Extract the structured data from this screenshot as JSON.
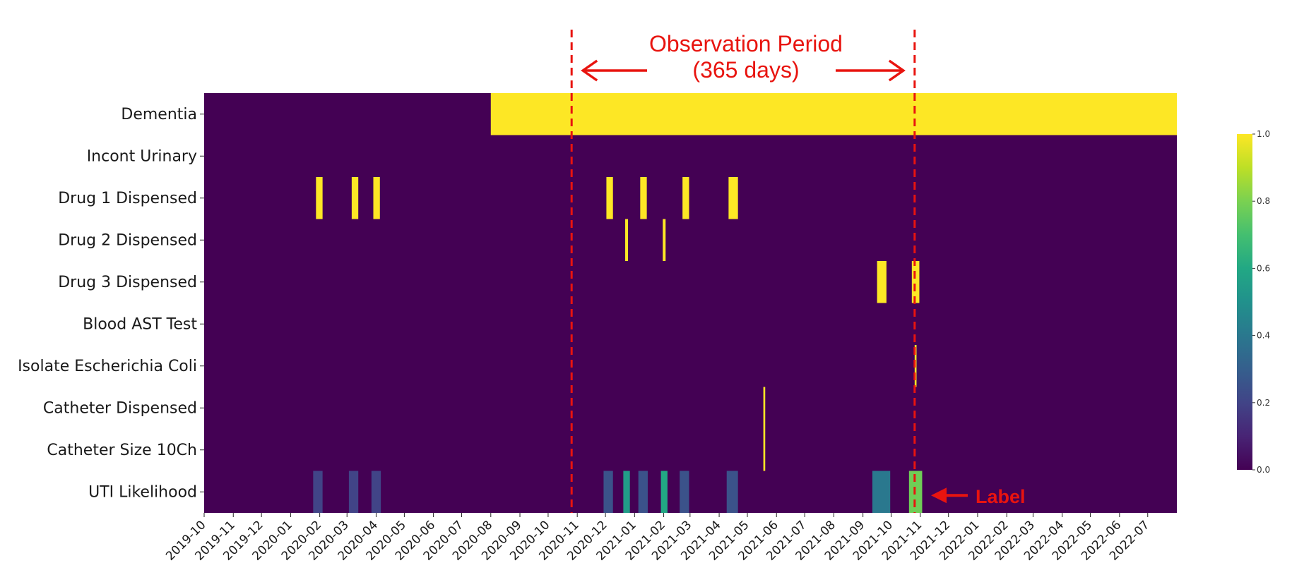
{
  "chart_data": {
    "type": "heatmap",
    "title": "",
    "xlabel": "",
    "ylabel": "",
    "x_start": "2019-10-01",
    "x_end": "2022-08-01",
    "x_tick_labels": [
      "2019-10",
      "2019-11",
      "2019-12",
      "2020-01",
      "2020-02",
      "2020-03",
      "2020-04",
      "2020-05",
      "2020-06",
      "2020-07",
      "2020-08",
      "2020-09",
      "2020-10",
      "2020-11",
      "2020-12",
      "2021-01",
      "2021-02",
      "2021-03",
      "2021-04",
      "2021-05",
      "2021-06",
      "2021-07",
      "2021-08",
      "2021-09",
      "2021-10",
      "2021-11",
      "2021-12",
      "2022-01",
      "2022-02",
      "2022-03",
      "2022-04",
      "2022-05",
      "2022-06",
      "2022-07"
    ],
    "rows": [
      "Dementia",
      "Incont Urinary",
      "Drug 1 Dispensed",
      "Drug 2 Dispensed",
      "Drug 3 Dispensed",
      "Blood AST Test",
      "Isolate Escherichia Coli",
      "Catheter Dispensed",
      "Catheter Size 10Ch",
      "UTI Likelihood"
    ],
    "background_value": 0.0,
    "colormap": "viridis",
    "colorbar": {
      "min": 0.0,
      "max": 1.0,
      "ticks": [
        "0.0",
        "0.2",
        "0.4",
        "0.6",
        "0.8",
        "1.0"
      ]
    },
    "events": [
      {
        "row": "Dementia",
        "start": "2020-08-01",
        "end": "2022-08-01",
        "value": 1.0
      },
      {
        "row": "Drug 1 Dispensed",
        "start": "2020-01-28",
        "end": "2020-02-04",
        "value": 1.0
      },
      {
        "row": "Drug 1 Dispensed",
        "start": "2020-03-06",
        "end": "2020-03-13",
        "value": 1.0
      },
      {
        "row": "Drug 1 Dispensed",
        "start": "2020-03-29",
        "end": "2020-04-05",
        "value": 1.0
      },
      {
        "row": "Drug 1 Dispensed",
        "start": "2020-12-02",
        "end": "2020-12-09",
        "value": 1.0
      },
      {
        "row": "Drug 1 Dispensed",
        "start": "2021-01-07",
        "end": "2021-01-14",
        "value": 1.0
      },
      {
        "row": "Drug 1 Dispensed",
        "start": "2021-02-21",
        "end": "2021-02-28",
        "value": 1.0
      },
      {
        "row": "Drug 1 Dispensed",
        "start": "2021-04-11",
        "end": "2021-04-21",
        "value": 1.0
      },
      {
        "row": "Drug 2 Dispensed",
        "start": "2020-12-22",
        "end": "2020-12-25",
        "value": 1.0
      },
      {
        "row": "Drug 2 Dispensed",
        "start": "2021-01-31",
        "end": "2021-02-03",
        "value": 1.0
      },
      {
        "row": "Drug 3 Dispensed",
        "start": "2021-09-16",
        "end": "2021-09-26",
        "value": 1.0
      },
      {
        "row": "Drug 3 Dispensed",
        "start": "2021-10-23",
        "end": "2021-10-31",
        "value": 1.0
      },
      {
        "row": "Isolate Escherichia Coli",
        "start": "2021-10-26",
        "end": "2021-10-28",
        "value": 1.0
      },
      {
        "row": "Catheter Dispensed",
        "start": "2021-05-18",
        "end": "2021-05-20",
        "value": 1.0
      },
      {
        "row": "Catheter Size 10Ch",
        "start": "2021-05-18",
        "end": "2021-05-20",
        "value": 1.0
      },
      {
        "row": "UTI Likelihood",
        "start": "2020-01-25",
        "end": "2020-02-04",
        "value": 0.2
      },
      {
        "row": "UTI Likelihood",
        "start": "2020-03-03",
        "end": "2020-03-13",
        "value": 0.2
      },
      {
        "row": "UTI Likelihood",
        "start": "2020-03-27",
        "end": "2020-04-06",
        "value": 0.2
      },
      {
        "row": "UTI Likelihood",
        "start": "2020-11-29",
        "end": "2020-12-09",
        "value": 0.25
      },
      {
        "row": "UTI Likelihood",
        "start": "2020-12-20",
        "end": "2020-12-27",
        "value": 0.55
      },
      {
        "row": "UTI Likelihood",
        "start": "2021-01-05",
        "end": "2021-01-15",
        "value": 0.25
      },
      {
        "row": "UTI Likelihood",
        "start": "2021-01-29",
        "end": "2021-02-05",
        "value": 0.6
      },
      {
        "row": "UTI Likelihood",
        "start": "2021-02-18",
        "end": "2021-02-28",
        "value": 0.25
      },
      {
        "row": "UTI Likelihood",
        "start": "2021-04-09",
        "end": "2021-04-21",
        "value": 0.25
      },
      {
        "row": "UTI Likelihood",
        "start": "2021-09-11",
        "end": "2021-09-30",
        "value": 0.4
      },
      {
        "row": "UTI Likelihood",
        "start": "2021-10-20",
        "end": "2021-11-03",
        "value": 0.78
      }
    ],
    "observation_period": {
      "start": "2020-10-26",
      "end": "2021-10-26",
      "title_line1": "Observation Period",
      "title_line2": "(365 days)"
    },
    "label_annotation": {
      "text": "Label",
      "row": "UTI Likelihood"
    }
  },
  "colors": {
    "annotation_red": "#e8140f",
    "background": "#ffffff"
  }
}
